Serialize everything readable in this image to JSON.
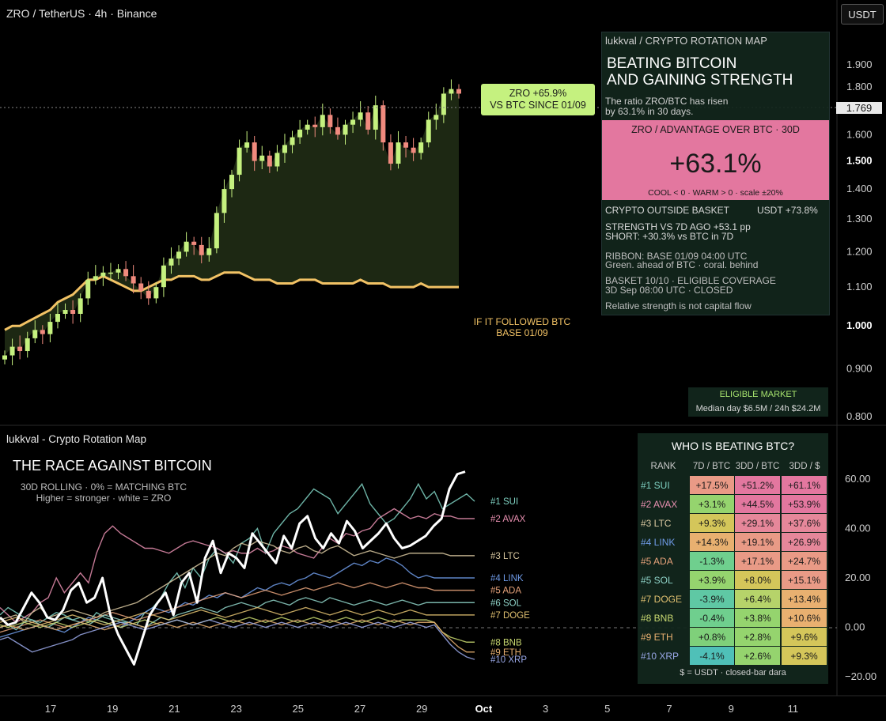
{
  "header": {
    "symbol_title": "ZRO / TetherUS · 4h · Binance",
    "currency_button": "USDT"
  },
  "price_axis": {
    "ticks": [
      "1.900",
      "1.800",
      "1.700",
      "1.600",
      "1.500",
      "1.400",
      "1.300",
      "1.200",
      "1.100",
      "1.000",
      "0.900",
      "0.800"
    ],
    "current_price": "1.769"
  },
  "zro_label": {
    "line1": "ZRO +65.9%",
    "line2": "VS BTC SINCE 01/09"
  },
  "follow_label": {
    "line1": "IF IT FOLLOWED BTC",
    "line2": "BASE 01/09"
  },
  "rotation_box": {
    "header": "lukkval  /  CRYPTO ROTATION MAP",
    "headline1": "BEATING BITCOIN",
    "headline2": "AND GAINING STRENGTH",
    "sub1": "The ratio ZRO/BTC has risen",
    "sub2": "by 63.1% in 30 days.",
    "pink_title": "ZRO  /  ADVANTAGE OVER BTC · 30D",
    "pink_value": "+63.1%",
    "pink_scale": "COOL < 0 · WARM > 0 · scale ±20%",
    "basket_left": "CRYPTO OUTSIDE BASKET",
    "basket_right": "USDT +73.8%",
    "strength1": "STRENGTH VS 7D AGO  +53.1 pp",
    "strength2": "SHORT: +30.3% vs BTC in 7D",
    "ribbon1": "RIBBON: BASE 01/09 04:00 UTC",
    "ribbon2": "Green. ahead of BTC · coral. behind",
    "basket1": "BASKET 10/10 · ELIGIBLE COVERAGE",
    "basket2": "3D Sep 08:00 UTC · CLOSED",
    "note": "Relative strength is not capital flow"
  },
  "eligible_box": {
    "title": "ELIGIBLE MARKET",
    "detail": "Median day $6.5M / 24h $24.2M"
  },
  "lower_panel": {
    "indicator_title": "lukkval - Crypto Rotation Map",
    "race_title": "THE RACE AGAINST BITCOIN",
    "race_sub1": "30D ROLLING · 0% = MATCHING BTC",
    "race_sub2": "Higher = stronger · white = ZRO",
    "axis_ticks": [
      "60.00",
      "40.00",
      "20.00",
      "0.00",
      "−20.00"
    ]
  },
  "ranking": {
    "title": "WHO IS BEATING BTC?",
    "headers": [
      "RANK",
      "7D / BTC",
      "3DD / BTC",
      "3DD / $"
    ],
    "rows": [
      {
        "rank": "#1 SUI",
        "c7": "+17.5%",
        "c30": "+51.2%",
        "cusd": "+61.1%",
        "color": "#7fd1c2"
      },
      {
        "rank": "#2 AVAX",
        "c7": "+3.1%",
        "c30": "+44.5%",
        "cusd": "+53.9%",
        "color": "#e88fb0"
      },
      {
        "rank": "#3 LTC",
        "c7": "+9.3%",
        "c30": "+29.1%",
        "cusd": "+37.6%",
        "color": "#d9c8a0"
      },
      {
        "rank": "#4 LINK",
        "c7": "+14.3%",
        "c30": "+19.1%",
        "cusd": "+26.9%",
        "color": "#6f9be8"
      },
      {
        "rank": "#5 ADA",
        "c7": "-1.3%",
        "c30": "+17.1%",
        "cusd": "+24.7%",
        "color": "#e6a27a"
      },
      {
        "rank": "#5 SOL",
        "c7": "+3.9%",
        "c30": "+8.0%",
        "cusd": "+15.1%",
        "color": "#8fd3c8"
      },
      {
        "rank": "#7 DOGE",
        "c7": "-3.9%",
        "c30": "+6.4%",
        "cusd": "+13.4%",
        "color": "#e0c070"
      },
      {
        "rank": "#8 BNB",
        "c7": "-0.4%",
        "c30": "+3.8%",
        "cusd": "+10.6%",
        "color": "#c8d870"
      },
      {
        "rank": "#9 ETH",
        "c7": "+0.8%",
        "c30": "+2.8%",
        "cusd": "+9.6%",
        "color": "#e8b070"
      },
      {
        "rank": "#10 XRP",
        "c7": "-4.1%",
        "c30": "+2.6%",
        "cusd": "+9.3%",
        "color": "#9aa8e8"
      }
    ],
    "footer": "$ = USDT · closed-bar dara"
  },
  "time_axis": {
    "ticks": [
      "17",
      "19",
      "21",
      "23",
      "25",
      "27",
      "29",
      "Oct",
      "3",
      "5",
      "7",
      "9",
      "11"
    ]
  },
  "colors": {
    "up": "#c5f17f",
    "down": "#f08a7e",
    "btc_line": "#f2c265",
    "area": "#1f2a14",
    "zro_line": "#ffffff",
    "pink": "#e3779f"
  },
  "chart_data": [
    {
      "type": "candlestick",
      "ylim": [
        0.8,
        1.9
      ],
      "yscale": "log",
      "close_series": [
        0.93,
        0.95,
        0.94,
        0.97,
        0.99,
        0.98,
        1.01,
        1.03,
        1.04,
        1.03,
        1.07,
        1.12,
        1.13,
        1.14,
        1.14,
        1.15,
        1.13,
        1.11,
        1.09,
        1.07,
        1.1,
        1.16,
        1.18,
        1.2,
        1.23,
        1.22,
        1.19,
        1.21,
        1.32,
        1.4,
        1.45,
        1.55,
        1.57,
        1.5,
        1.52,
        1.48,
        1.53,
        1.56,
        1.59,
        1.62,
        1.64,
        1.63,
        1.68,
        1.63,
        1.6,
        1.64,
        1.66,
        1.69,
        1.62,
        1.72,
        1.57,
        1.49,
        1.57,
        1.55,
        1.53,
        1.57,
        1.66,
        1.68,
        1.77,
        1.79,
        1.77
      ],
      "series": [
        {
          "name": "IF IT FOLLOWED BTC",
          "values": [
            0.99,
            1.0,
            1.0,
            1.01,
            1.02,
            1.03,
            1.04,
            1.06,
            1.07,
            1.08,
            1.1,
            1.12,
            1.12,
            1.13,
            1.12,
            1.11,
            1.1,
            1.09,
            1.09,
            1.1,
            1.11,
            1.12,
            1.12,
            1.13,
            1.13,
            1.13,
            1.12,
            1.12,
            1.13,
            1.14,
            1.14,
            1.14,
            1.13,
            1.12,
            1.12,
            1.12,
            1.11,
            1.11,
            1.11,
            1.12,
            1.12,
            1.12,
            1.11,
            1.11,
            1.11,
            1.11,
            1.11,
            1.12,
            1.11,
            1.11,
            1.11,
            1.1,
            1.1,
            1.1,
            1.1,
            1.11,
            1.1,
            1.1,
            1.1,
            1.1,
            1.1
          ]
        }
      ]
    },
    {
      "type": "line",
      "title": "THE RACE AGAINST BITCOIN",
      "ylim": [
        -20,
        60
      ],
      "series": [
        {
          "name": "ZRO",
          "color": "#ffffff",
          "values": [
            4,
            1,
            2,
            8,
            14,
            10,
            4,
            3,
            7,
            15,
            18,
            10,
            12,
            20,
            5,
            -3,
            -9,
            -15,
            -5,
            5,
            10,
            14,
            5,
            18,
            22,
            10,
            28,
            35,
            22,
            30,
            28,
            24,
            38,
            34,
            30,
            26,
            37,
            32,
            42,
            45,
            36,
            32,
            38,
            34,
            43,
            39,
            32,
            35,
            38,
            42,
            36,
            32,
            33,
            35,
            37,
            41,
            44,
            56,
            62,
            63
          ]
        },
        {
          "name": "#1 SUI",
          "color": "#7fd1c2",
          "values": [
            5,
            8,
            6,
            4,
            3,
            2,
            4,
            6,
            5,
            3,
            4,
            2,
            6,
            4,
            3,
            2,
            2,
            1,
            6,
            8,
            12,
            18,
            22,
            16,
            24,
            20,
            28,
            32,
            30,
            26,
            34,
            36,
            40,
            30,
            38,
            42,
            46,
            48,
            52,
            56,
            54,
            52,
            46,
            50,
            54,
            58,
            50,
            46,
            42,
            44,
            48,
            52,
            58,
            52,
            55,
            48,
            50,
            52,
            54,
            51
          ]
        },
        {
          "name": "#2 AVAX",
          "color": "#e88fb0",
          "values": [
            8,
            5,
            2,
            4,
            6,
            10,
            12,
            20,
            14,
            18,
            22,
            18,
            30,
            38,
            41,
            38,
            36,
            34,
            32,
            32,
            31,
            30,
            32,
            34,
            35,
            34,
            33,
            32,
            30,
            31,
            30,
            30,
            32,
            30,
            31,
            33,
            32,
            30,
            29,
            28,
            32,
            36,
            34,
            38,
            37,
            39,
            40,
            44,
            46,
            48,
            46,
            44,
            45,
            44,
            46,
            45,
            45,
            44,
            44,
            44
          ]
        },
        {
          "name": "#3 LTC",
          "color": "#d9c8a0",
          "values": [
            3,
            4,
            5,
            2,
            6,
            8,
            4,
            5,
            6,
            7,
            6,
            5,
            4,
            6,
            7,
            8,
            9,
            10,
            12,
            14,
            16,
            18,
            20,
            22,
            24,
            26,
            28,
            30,
            29,
            32,
            34,
            33,
            35,
            34,
            33,
            31,
            30,
            32,
            33,
            31,
            30,
            32,
            33,
            31,
            29,
            30,
            31,
            30,
            29,
            28,
            29,
            30,
            30,
            30,
            30,
            30,
            29,
            29,
            29,
            29
          ]
        },
        {
          "name": "#4 LINK",
          "color": "#6f9be8",
          "values": [
            -4,
            -3,
            -2,
            -1,
            0,
            1,
            0,
            -1,
            -2,
            0,
            2,
            4,
            3,
            2,
            1,
            0,
            2,
            4,
            6,
            8,
            7,
            6,
            8,
            10,
            9,
            11,
            13,
            12,
            14,
            13,
            12,
            14,
            16,
            15,
            17,
            18,
            17,
            19,
            20,
            22,
            21,
            20,
            22,
            24,
            26,
            25,
            27,
            26,
            28,
            27,
            25,
            22,
            20,
            21,
            20,
            20,
            20,
            20,
            20,
            20
          ]
        },
        {
          "name": "#5 ADA",
          "color": "#e6a27a",
          "values": [
            -2,
            -1,
            0,
            1,
            2,
            3,
            2,
            1,
            0,
            1,
            2,
            3,
            4,
            5,
            6,
            5,
            4,
            3,
            4,
            5,
            6,
            7,
            8,
            9,
            10,
            11,
            12,
            13,
            14,
            13,
            12,
            13,
            14,
            15,
            14,
            13,
            14,
            15,
            16,
            15,
            16,
            17,
            18,
            17,
            16,
            17,
            18,
            17,
            16,
            17,
            18,
            17,
            16,
            16,
            15,
            15,
            15,
            15,
            15,
            15
          ]
        },
        {
          "name": "#6 SOL",
          "color": "#8fd3c8",
          "values": [
            0,
            1,
            -1,
            2,
            3,
            1,
            0,
            2,
            4,
            3,
            2,
            1,
            3,
            5,
            4,
            3,
            2,
            1,
            0,
            2,
            4,
            3,
            5,
            6,
            7,
            8,
            7,
            6,
            8,
            9,
            10,
            9,
            8,
            10,
            11,
            10,
            9,
            11,
            12,
            11,
            10,
            12,
            11,
            10,
            9,
            10,
            11,
            10,
            9,
            10,
            11,
            10,
            9,
            10,
            10,
            10,
            10,
            10,
            10,
            10
          ]
        },
        {
          "name": "#7 DOGE",
          "color": "#e0c070",
          "values": [
            2,
            3,
            4,
            3,
            2,
            1,
            2,
            3,
            4,
            5,
            4,
            3,
            2,
            1,
            2,
            3,
            4,
            5,
            6,
            5,
            4,
            3,
            4,
            5,
            6,
            7,
            6,
            5,
            4,
            5,
            6,
            7,
            8,
            7,
            6,
            5,
            6,
            7,
            8,
            7,
            6,
            5,
            6,
            7,
            6,
            5,
            6,
            7,
            6,
            5,
            6,
            7,
            6,
            5,
            5,
            5,
            5,
            5,
            5,
            5
          ]
        },
        {
          "name": "#8 BNB",
          "color": "#c8d870",
          "values": [
            1,
            0,
            1,
            2,
            1,
            0,
            1,
            2,
            1,
            0,
            1,
            2,
            3,
            2,
            1,
            0,
            1,
            2,
            3,
            2,
            1,
            2,
            3,
            2,
            1,
            2,
            3,
            4,
            3,
            2,
            3,
            4,
            3,
            2,
            3,
            4,
            3,
            2,
            3,
            4,
            3,
            2,
            3,
            4,
            3,
            2,
            3,
            4,
            3,
            2,
            3,
            3,
            3,
            3,
            2,
            -2,
            -4,
            -5,
            -6,
            -6
          ]
        },
        {
          "name": "#9 ETH",
          "color": "#e8b070",
          "values": [
            0,
            1,
            0,
            -1,
            0,
            1,
            0,
            -1,
            0,
            1,
            2,
            1,
            0,
            -1,
            0,
            1,
            2,
            1,
            0,
            1,
            2,
            1,
            0,
            1,
            2,
            1,
            0,
            1,
            2,
            3,
            2,
            1,
            2,
            3,
            2,
            1,
            2,
            3,
            2,
            1,
            2,
            3,
            2,
            1,
            2,
            3,
            2,
            1,
            2,
            3,
            2,
            1,
            2,
            2,
            2,
            -2,
            -5,
            -8,
            -10,
            -10
          ]
        },
        {
          "name": "#10 XRP",
          "color": "#9aa8e8",
          "values": [
            -5,
            -4,
            -6,
            -8,
            -10,
            -9,
            -8,
            -7,
            -6,
            -5,
            -3,
            -2,
            -1,
            0,
            1,
            2,
            1,
            0,
            -1,
            0,
            1,
            2,
            3,
            2,
            1,
            2,
            3,
            2,
            1,
            0,
            1,
            2,
            1,
            0,
            1,
            2,
            1,
            0,
            1,
            2,
            1,
            0,
            1,
            2,
            1,
            0,
            1,
            2,
            1,
            0,
            1,
            2,
            1,
            0,
            1,
            -3,
            -7,
            -10,
            -12,
            -13
          ]
        }
      ]
    }
  ]
}
